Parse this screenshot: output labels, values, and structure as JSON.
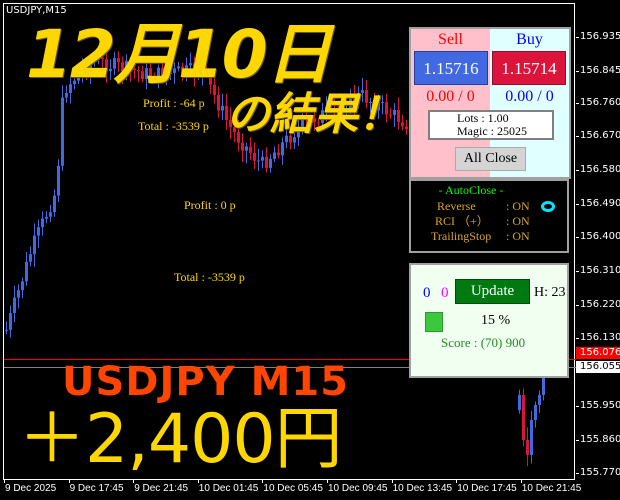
{
  "chart": {
    "symbol": "USDJPY,M15",
    "price_labels": [
      "156.935",
      "156.845",
      "156.760",
      "156.670",
      "156.580",
      "156.490",
      "156.400",
      "156.310",
      "156.220",
      "156.130",
      "155.950",
      "155.860",
      "155.770"
    ],
    "time_labels": [
      "9 Dec 2025",
      "9 Dec 17:45",
      "9 Dec 21:45",
      "10 Dec 01:45",
      "10 Dec 05:45",
      "10 Dec 09:45",
      "10 Dec 13:45",
      "10 Dec 17:45",
      "10 Dec 21:45"
    ],
    "ask_tag": "156.076",
    "bid_tag": "156.055",
    "colors": {
      "bull": "#4169e1",
      "bear": "#dc143c",
      "ask_line": "#ff0000",
      "bid_line": "#808080"
    }
  },
  "annotations": {
    "profit1": "Profit : -64 p",
    "total1": "Total : -3539 p",
    "profit2": "Profit : 0 p",
    "total2": "Total : -3539 p"
  },
  "overlay": {
    "date_title": "12月10日",
    "result": "の結果！",
    "pair": "USDJPY  M15",
    "gain": "＋2,400円"
  },
  "trade_panel": {
    "sell_label": "Sell",
    "buy_label": "Buy",
    "sell_price": "1.15716",
    "buy_price": "1.15714",
    "sell_pl": "0.00 / 0",
    "buy_pl": "0.00 / 0",
    "lots": "Lots   : 1.00",
    "magic": "Magic : 25025",
    "all_close": "All Close"
  },
  "autoclose_panel": {
    "title": "- AutoClose -",
    "reverse_label": "Reverse",
    "reverse_value": ": ON",
    "rci_label": "RCI （+）",
    "rci_value": ": ON",
    "trailing_label": "TrailingStop",
    "trailing_value": ": ON",
    "indicator_color": "#00e5ff"
  },
  "score_panel": {
    "count_blue": "0",
    "count_magenta": "0",
    "update": "Update",
    "h": "H: 23",
    "percent": "15 %",
    "score": "Score : (70) 900"
  }
}
